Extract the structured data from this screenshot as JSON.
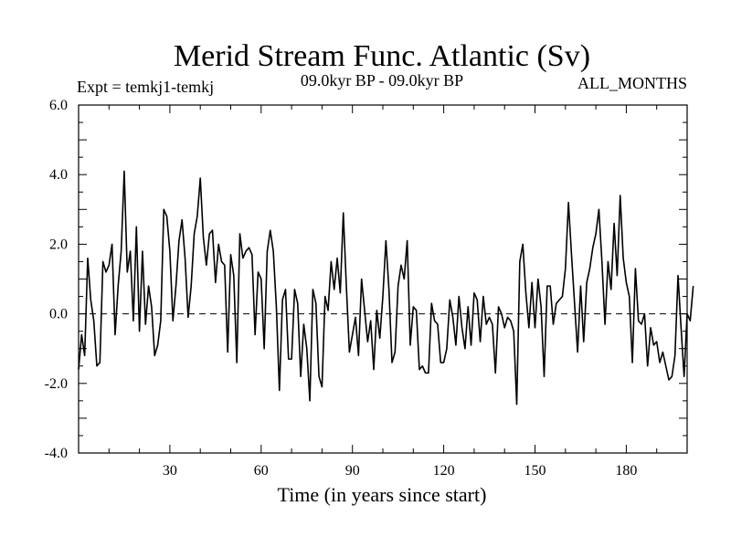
{
  "chart_data": {
    "type": "line",
    "title": "Merid Stream Func. Atlantic (Sv)",
    "subtitle_left": "Expt = temkj1-temkj",
    "subtitle_center": "09.0kyr BP - 09.0kyr BP",
    "subtitle_right": "ALL_MONTHS",
    "xlabel": "Time (in years since start)",
    "ylabel": "",
    "xlim": [
      0,
      200
    ],
    "ylim": [
      -4.0,
      6.0
    ],
    "xticks": [
      30,
      60,
      90,
      120,
      150,
      180
    ],
    "yticks": [
      -4.0,
      -2.0,
      0.0,
      2.0,
      4.0,
      6.0
    ],
    "ytick_labels": [
      "-4.0",
      "-2.0",
      "0.0",
      "2.0",
      "4.0",
      "6.0"
    ],
    "zero_line": "dashed",
    "x_start": 0,
    "x_step": 1,
    "series": [
      {
        "name": "Merid Stream Func. Atlantic",
        "values": [
          -1.6,
          -0.6,
          -1.2,
          1.6,
          0.4,
          -0.2,
          -1.5,
          -1.4,
          1.5,
          1.2,
          1.4,
          2.0,
          -0.6,
          0.8,
          1.8,
          4.1,
          1.2,
          1.8,
          -0.2,
          2.5,
          -0.5,
          1.8,
          -0.3,
          0.8,
          0.2,
          -1.2,
          -0.9,
          -0.2,
          3.0,
          2.8,
          1.8,
          -0.2,
          0.8,
          2.1,
          2.7,
          1.6,
          -0.1,
          0.8,
          2.3,
          2.8,
          3.9,
          2.2,
          1.4,
          2.3,
          2.4,
          0.9,
          2.0,
          1.5,
          1.4,
          -1.1,
          1.7,
          1.1,
          -1.4,
          2.3,
          1.6,
          1.8,
          1.9,
          1.7,
          -0.6,
          1.2,
          1.0,
          -1.0,
          1.8,
          2.4,
          1.8,
          0.2,
          -2.2,
          0.4,
          0.7,
          -1.3,
          -1.3,
          0.7,
          0.3,
          -1.8,
          -0.3,
          -1.0,
          -2.5,
          0.7,
          0.3,
          -1.8,
          -2.1,
          0.5,
          0.1,
          1.5,
          0.7,
          1.6,
          0.6,
          2.9,
          0.8,
          -1.1,
          -0.6,
          -0.1,
          -1.2,
          1.0,
          0.1,
          -0.8,
          -0.2,
          -1.6,
          0.1,
          -0.7,
          0.5,
          2.1,
          0.7,
          -1.4,
          -1.1,
          0.8,
          1.4,
          1.0,
          2.1,
          -0.9,
          0.2,
          0.1,
          -1.6,
          -1.5,
          -1.7,
          -1.7,
          0.3,
          -0.2,
          -0.3,
          -1.4,
          -1.4,
          -1.0,
          0.4,
          -0.1,
          -0.9,
          0.5,
          -0.4,
          -1.0,
          0.2,
          -0.9,
          0.6,
          0.4,
          -0.8,
          0.5,
          -0.3,
          -0.1,
          -0.3,
          -1.7,
          0.2,
          0.0,
          -0.4,
          -0.1,
          -0.2,
          -0.5,
          -2.6,
          1.5,
          2.0,
          0.6,
          -0.4,
          0.9,
          -0.4,
          1.0,
          0.2,
          -1.8,
          0.8,
          0.8,
          -0.3,
          0.3,
          0.4,
          0.5,
          1.3,
          3.2,
          1.7,
          0.3,
          -1.1,
          0.8,
          -0.8,
          0.9,
          1.3,
          1.9,
          2.3,
          3.0,
          1.5,
          -0.3,
          1.5,
          0.7,
          2.6,
          1.1,
          3.4,
          1.6,
          0.9,
          0.5,
          -1.4,
          1.3,
          -0.2,
          -0.3,
          0.0,
          -1.5,
          -0.4,
          -0.9,
          -0.8,
          -1.4,
          -1.1,
          -1.5,
          -1.9,
          -1.8,
          -1.2,
          1.1,
          -0.4,
          -1.8,
          0.0,
          -0.2,
          0.8
        ]
      }
    ]
  }
}
